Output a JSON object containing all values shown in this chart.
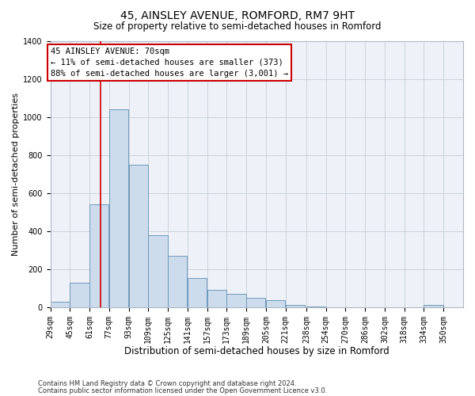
{
  "title": "45, AINSLEY AVENUE, ROMFORD, RM7 9HT",
  "subtitle": "Size of property relative to semi-detached houses in Romford",
  "xlabel": "Distribution of semi-detached houses by size in Romford",
  "ylabel": "Number of semi-detached properties",
  "footer_line1": "Contains HM Land Registry data © Crown copyright and database right 2024.",
  "footer_line2": "Contains public sector information licensed under the Open Government Licence v3.0.",
  "annotation_title": "45 AINSLEY AVENUE: 70sqm",
  "annotation_line1": "← 11% of semi-detached houses are smaller (373)",
  "annotation_line2": "88% of semi-detached houses are larger (3,001) →",
  "property_size": 70,
  "bin_edges": [
    29,
    45,
    61,
    77,
    93,
    109,
    125,
    141,
    157,
    173,
    189,
    205,
    221,
    238,
    254,
    270,
    286,
    302,
    318,
    334,
    350
  ],
  "counts": [
    30,
    130,
    540,
    1040,
    750,
    380,
    270,
    155,
    90,
    70,
    50,
    35,
    10,
    5,
    0,
    0,
    0,
    0,
    0,
    10
  ],
  "bar_color": "#ccdcec",
  "bar_edge_color": "#7099bb",
  "vline_color": "#cc0000",
  "annotation_box_color": "#cc0000",
  "bg_color": "#eef2f8",
  "grid_color": "#c5cdd8",
  "ylim": [
    0,
    1400
  ],
  "yticks": [
    0,
    200,
    400,
    600,
    800,
    1000,
    1200,
    1400
  ],
  "title_fontsize": 10,
  "subtitle_fontsize": 8.5,
  "ylabel_fontsize": 8,
  "xlabel_fontsize": 8.5,
  "tick_fontsize": 7,
  "footer_fontsize": 6,
  "annotation_fontsize": 7.5
}
